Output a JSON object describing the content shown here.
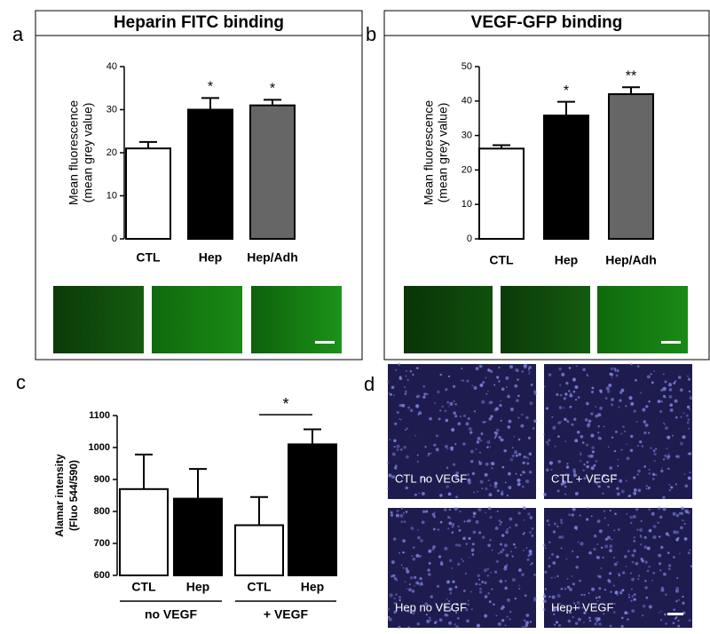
{
  "chart_data": [
    {
      "type": "bar",
      "title": "Heparin FITC binding",
      "ylabel": [
        "Mean fluorescence",
        "(mean grey value)"
      ],
      "categories": [
        "CTL",
        "Hep",
        "Hep/Adh"
      ],
      "values": [
        21,
        30,
        31
      ],
      "errors": [
        1.5,
        2.7,
        1.3
      ],
      "colors": [
        "#ffffff",
        "#000000",
        "#666666"
      ],
      "significance": [
        null,
        "*",
        "*"
      ],
      "ylim": [
        0,
        40
      ],
      "yticks": [
        0,
        10,
        20,
        30,
        40
      ]
    },
    {
      "type": "bar",
      "title": "VEGF-GFP binding",
      "ylabel": [
        "Mean fluorescence",
        "(mean grey value)"
      ],
      "categories": [
        "CTL",
        "Hep",
        "Hep/Adh"
      ],
      "values": [
        26.2,
        35.8,
        42
      ],
      "errors": [
        1,
        4,
        2
      ],
      "colors": [
        "#ffffff",
        "#000000",
        "#666666"
      ],
      "significance": [
        null,
        "*",
        "**"
      ],
      "ylim": [
        0,
        50
      ],
      "yticks": [
        0,
        10,
        20,
        30,
        40,
        50
      ]
    },
    {
      "type": "bar",
      "ylabel": [
        "Alamar intensity",
        "(Fluo 544/590)"
      ],
      "categories": [
        "CTL",
        "Hep",
        "CTL",
        "Hep"
      ],
      "values": [
        870,
        840,
        757,
        1010
      ],
      "errors": [
        108,
        93,
        88,
        47
      ],
      "colors": [
        "#ffffff",
        "#000000",
        "#ffffff",
        "#000000"
      ],
      "groups": [
        "no VEGF",
        "+ VEGF"
      ],
      "bracket": "*",
      "ylim": [
        600,
        1100
      ],
      "yticks": [
        600,
        700,
        800,
        900,
        1000,
        1100
      ]
    }
  ],
  "panels": {
    "letters": [
      "a",
      "b",
      "c",
      "d"
    ],
    "image_captions": [
      "CTL no VEGF",
      "CTL + VEGF",
      "Hep no VEGF",
      "Hep+ VEGF"
    ]
  }
}
